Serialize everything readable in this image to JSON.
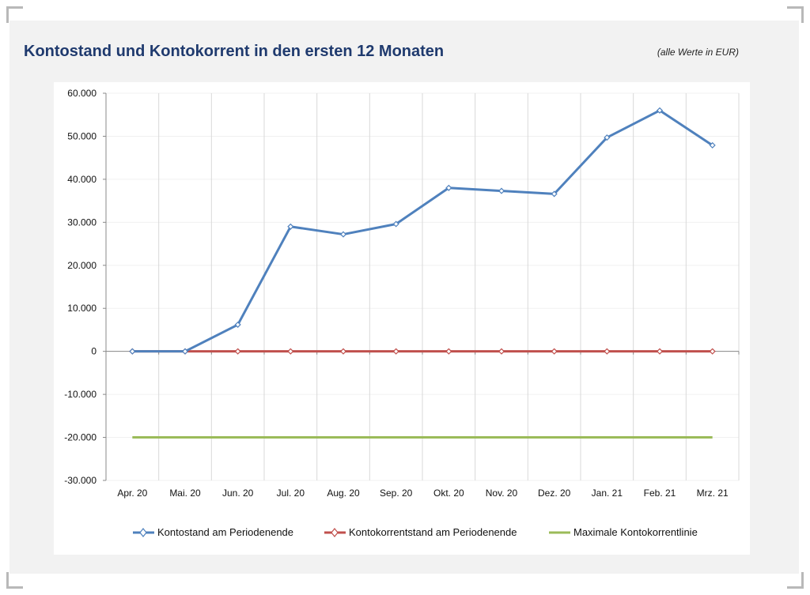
{
  "header": {
    "title": "Kontostand und Kontokorrent in den ersten 12 Monaten",
    "unit_note": "(alle Werte in EUR)"
  },
  "chart_data": {
    "type": "line",
    "title": "Kontostand und Kontokorrent in den ersten 12 Monaten",
    "xlabel": "",
    "ylabel": "",
    "categories": [
      "Apr. 20",
      "Mai. 20",
      "Jun. 20",
      "Jul. 20",
      "Aug. 20",
      "Sep. 20",
      "Okt. 20",
      "Nov. 20",
      "Dez. 20",
      "Jan. 21",
      "Feb. 21",
      "Mrz. 21"
    ],
    "ylim": [
      -30000,
      60000
    ],
    "y_ticks": [
      60000,
      50000,
      40000,
      30000,
      20000,
      10000,
      0,
      -10000,
      -20000,
      -30000
    ],
    "y_tick_labels": [
      "60.000",
      "50.000",
      "40.000",
      "30.000",
      "20.000",
      "10.000",
      "0",
      "-10.000",
      "-20.000",
      "-30.000"
    ],
    "grid": "vertical",
    "legend_position": "bottom",
    "series": [
      {
        "name": "Kontostand am Periodenende",
        "color": "#4f81bd",
        "marker": "diamond",
        "values": [
          0,
          0,
          6200,
          29000,
          27200,
          29600,
          38000,
          37300,
          36600,
          49700,
          56000,
          47900
        ]
      },
      {
        "name": "Kontokorrentstand am Periodenende",
        "color": "#c0504d",
        "marker": "diamond",
        "values": [
          0,
          0,
          0,
          0,
          0,
          0,
          0,
          0,
          0,
          0,
          0,
          0
        ]
      },
      {
        "name": "Maximale Kontokorrentlinie",
        "color": "#9bbb59",
        "marker": "none",
        "values": [
          -20000,
          -20000,
          -20000,
          -20000,
          -20000,
          -20000,
          -20000,
          -20000,
          -20000,
          -20000,
          -20000,
          -20000
        ]
      }
    ]
  }
}
